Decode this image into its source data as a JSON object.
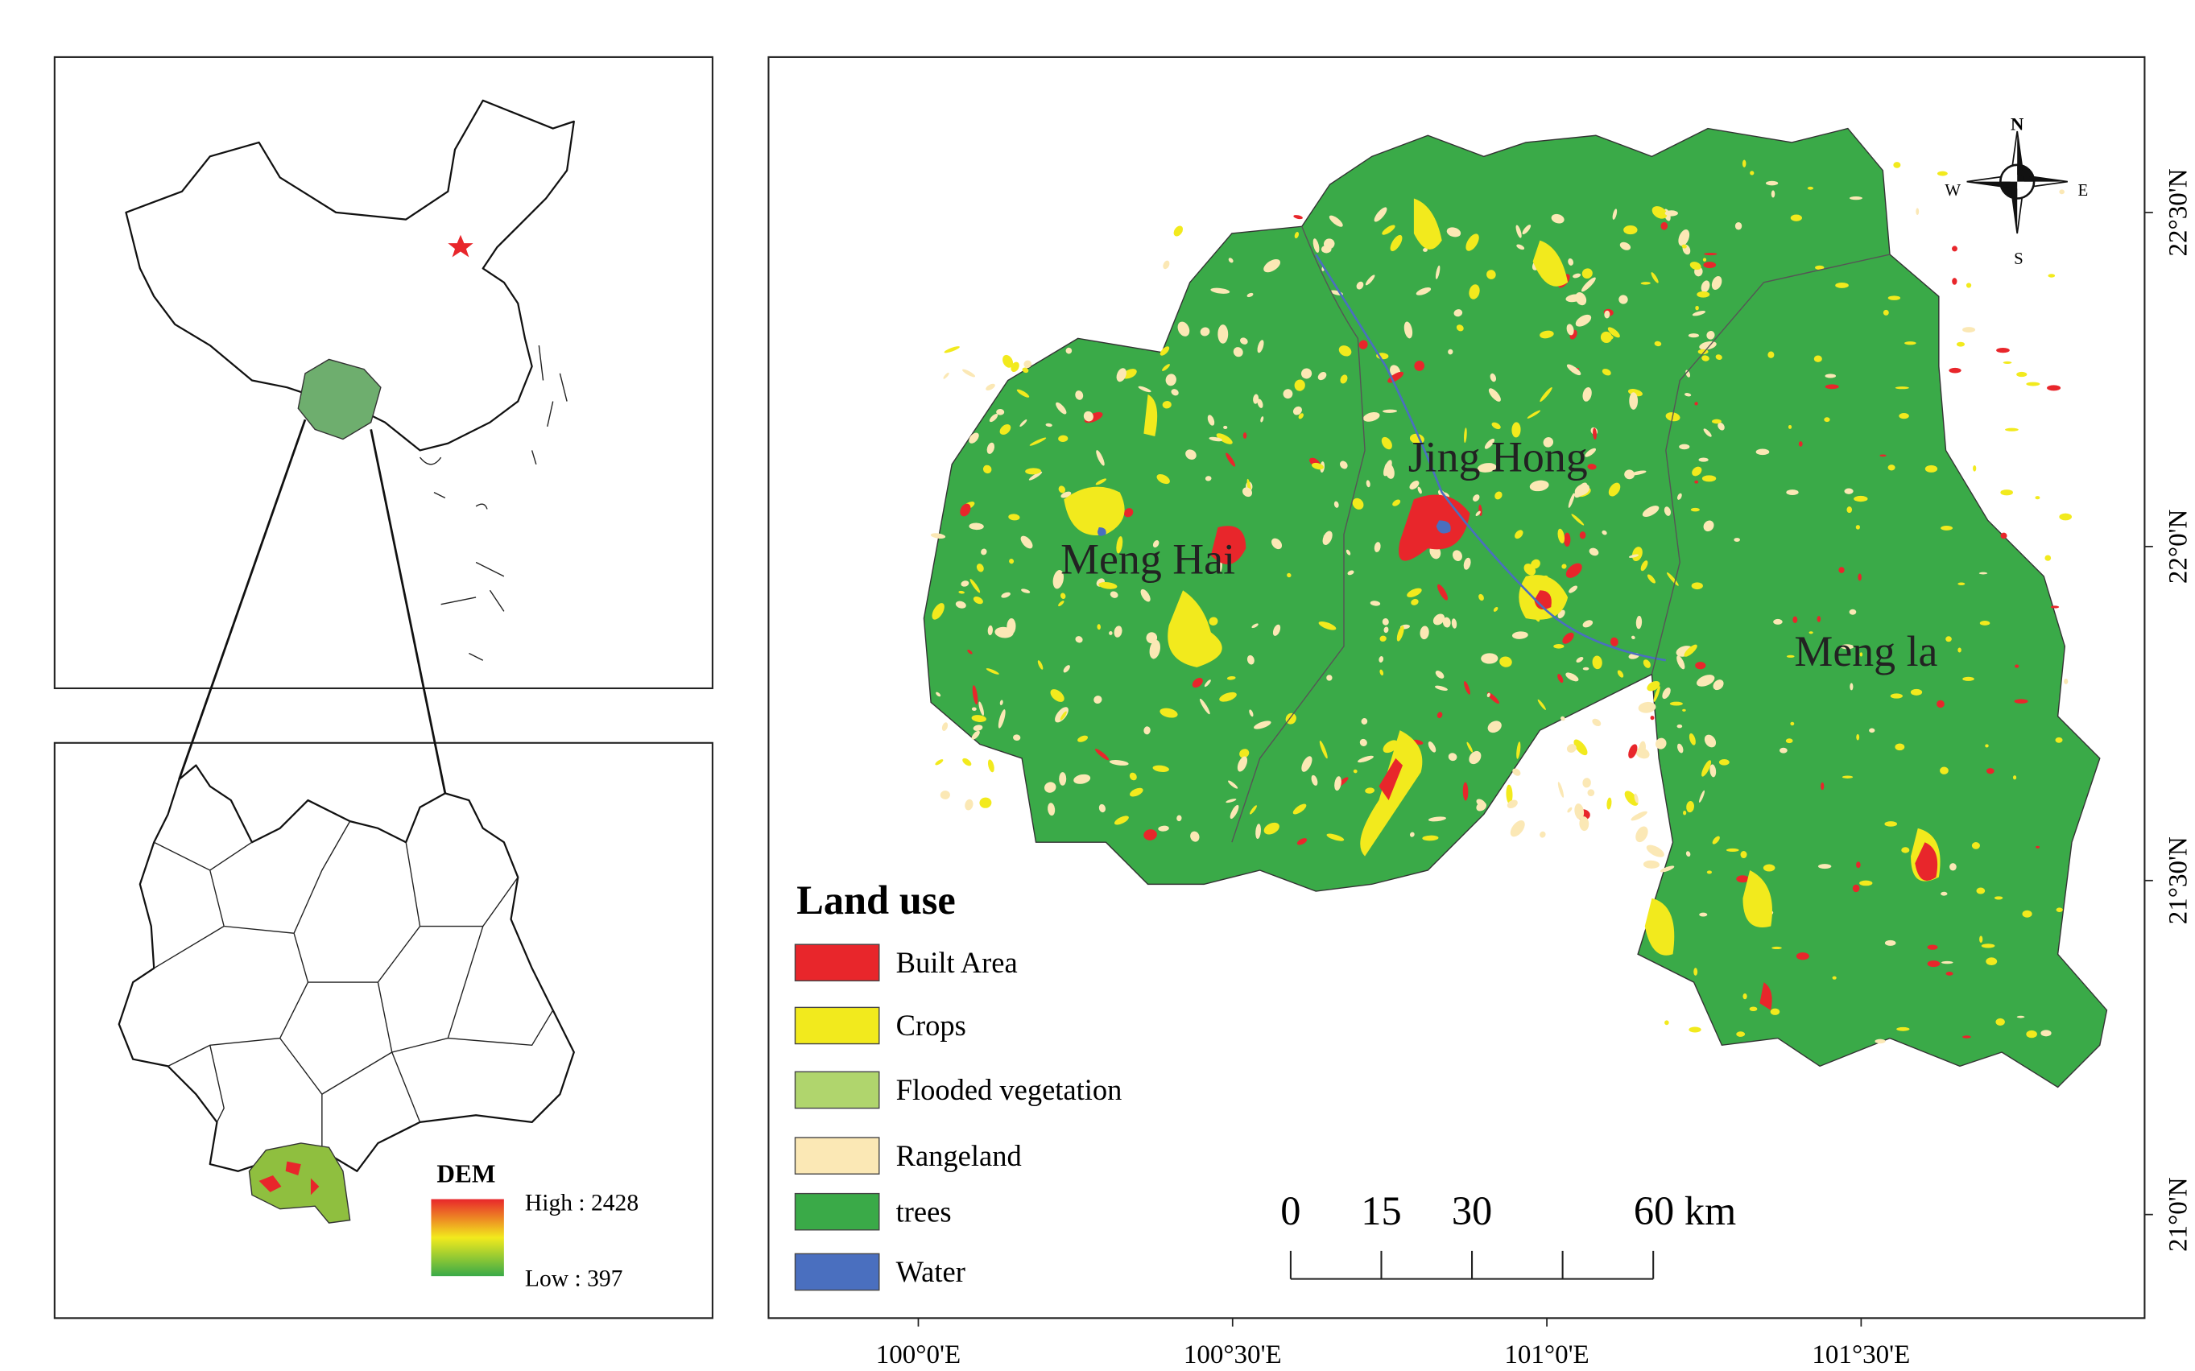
{
  "inset": {
    "dem_title": "DEM",
    "dem_high": "High : 2428",
    "dem_low": "Low : 397"
  },
  "legend": {
    "title": "Land use",
    "items": [
      {
        "name": "Built Area",
        "color": "#e8262b"
      },
      {
        "name": "Crops",
        "color": "#f2ea1d"
      },
      {
        "name": "Flooded vegetation",
        "color": "#b0d56d"
      },
      {
        "name": "Rangeland",
        "color": "#fbe8b5"
      },
      {
        "name": "trees",
        "color": "#3aaa48"
      },
      {
        "name": "Water",
        "color": "#4a6fbf"
      }
    ]
  },
  "regions": [
    "Jing Hong",
    "Meng Hai",
    "Meng la"
  ],
  "compass": {
    "n": "N",
    "s": "S",
    "e": "E",
    "w": "W"
  },
  "lon_ticks": [
    {
      "value": 100,
      "label": "100°0'E"
    },
    {
      "value": 100.5,
      "label": "100°30'E"
    },
    {
      "value": 101,
      "label": "101°0'E"
    },
    {
      "value": 101.5,
      "label": "101°30'E"
    }
  ],
  "lat_ticks": [
    {
      "value": 21,
      "label": "21°0'N"
    },
    {
      "value": 21.5,
      "label": "21°30'N"
    },
    {
      "value": 22,
      "label": "22°0'N"
    },
    {
      "value": 22.5,
      "label": "22°30'N"
    }
  ],
  "scale_bar": {
    "ticks": [
      0,
      15,
      30,
      {
        "value": 45,
        "label": null
      },
      {
        "value": 60,
        "label": "60 km"
      }
    ]
  }
}
